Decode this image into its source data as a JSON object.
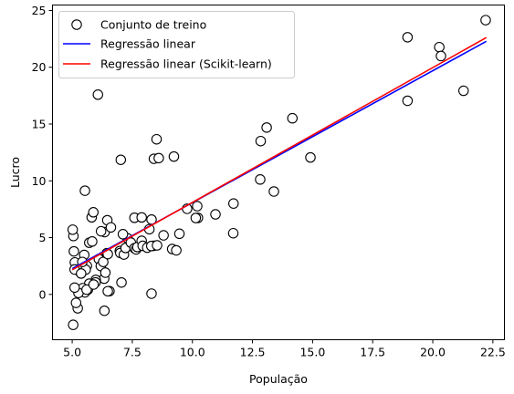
{
  "chart_data": {
    "type": "scatter",
    "title": "",
    "xlabel": "População",
    "ylabel": "Lucro",
    "xlim": [
      4.18,
      22.98
    ],
    "ylim": [
      -3.99,
      25.48
    ],
    "xticks": [
      5.0,
      7.5,
      10.0,
      12.5,
      15.0,
      17.5,
      20.0,
      22.5
    ],
    "xtick_labels": [
      "5.0",
      "7.5",
      "10.0",
      "12.5",
      "15.0",
      "17.5",
      "20.0",
      "22.5"
    ],
    "yticks": [
      0,
      5,
      10,
      15,
      20,
      25
    ],
    "ytick_labels": [
      "0",
      "5",
      "10",
      "15",
      "20",
      "25"
    ],
    "grid": false,
    "legend_position": "top-left",
    "series": [
      {
        "name": "Conjunto de treino",
        "kind": "scatter",
        "marker": "open-circle",
        "color": "#000000",
        "x": [
          22.2,
          18.95,
          20.27,
          20.34,
          21.28,
          18.95,
          6.07,
          8.51,
          8.4,
          8.6,
          9.23,
          7.02,
          14.16,
          13.09,
          12.84,
          14.91,
          5.53,
          12.82,
          13.39,
          11.71,
          10.2,
          10.96,
          10.23,
          5.81,
          6.35,
          6.46,
          6.61,
          7.59,
          7.89,
          8.3,
          9.78,
          9.46,
          8.8,
          8.38,
          8.21,
          7.3,
          7.11,
          6.98,
          6.44,
          6.33,
          5.98,
          5.71,
          5.65,
          5.53,
          5.44,
          5.26,
          5.1,
          5.07,
          5.05,
          5.02,
          5.11,
          5.19,
          5.3,
          5.41,
          5.5,
          5.61,
          5.71,
          5.83,
          5.88,
          5.97,
          6.11,
          6.19,
          6.29,
          6.38,
          6.48,
          6.55,
          7.0,
          7.15,
          7.22,
          7.44,
          7.59,
          7.66,
          7.71,
          7.89,
          7.93,
          8.12,
          8.29,
          8.53,
          9.16,
          9.33,
          10.14,
          11.7,
          5.34,
          5.56,
          5.42,
          5.23,
          5.16,
          5.6,
          5.89,
          6.34,
          6.48,
          6.2,
          7.05,
          8.3,
          5.04,
          5.1,
          5.37
        ],
        "y": [
          24.15,
          22.64,
          21.77,
          20.99,
          17.93,
          17.05,
          17.59,
          13.66,
          11.94,
          12.0,
          12.14,
          11.85,
          15.51,
          14.69,
          13.5,
          12.06,
          9.13,
          10.12,
          9.06,
          8.0,
          7.77,
          7.05,
          6.74,
          6.79,
          5.49,
          6.53,
          5.9,
          6.75,
          6.78,
          6.59,
          7.54,
          5.34,
          5.2,
          4.28,
          5.74,
          4.94,
          5.3,
          3.82,
          3.63,
          1.39,
          1.28,
          0.95,
          0.42,
          0.18,
          0.55,
          0.13,
          0.6,
          3.79,
          5.14,
          5.7,
          2.82,
          2.18,
          2.02,
          2.31,
          3.48,
          2.51,
          4.55,
          4.66,
          7.23,
          1.06,
          3.11,
          2.5,
          2.86,
          1.92,
          3.55,
          0.29,
          3.65,
          3.51,
          4.09,
          4.56,
          4.07,
          3.96,
          4.17,
          4.72,
          4.28,
          4.12,
          4.26,
          4.32,
          4.0,
          3.88,
          6.73,
          5.39,
          2.25,
          2.18,
          2.86,
          -1.22,
          -0.74,
          0.42,
          0.87,
          -1.44,
          0.28,
          5.56,
          1.05,
          0.07,
          -2.68,
          2.2,
          1.84
        ]
      },
      {
        "name": "Regressão linear",
        "kind": "line",
        "color": "#0000ff",
        "x": [
          5.03,
          22.2
        ],
        "y": [
          2.31,
          22.25
        ]
      },
      {
        "name": "Regressão linear (Scikit-learn)",
        "kind": "line",
        "color": "#ff0000",
        "x": [
          5.03,
          22.2
        ],
        "y": [
          2.2,
          22.58
        ]
      }
    ]
  }
}
